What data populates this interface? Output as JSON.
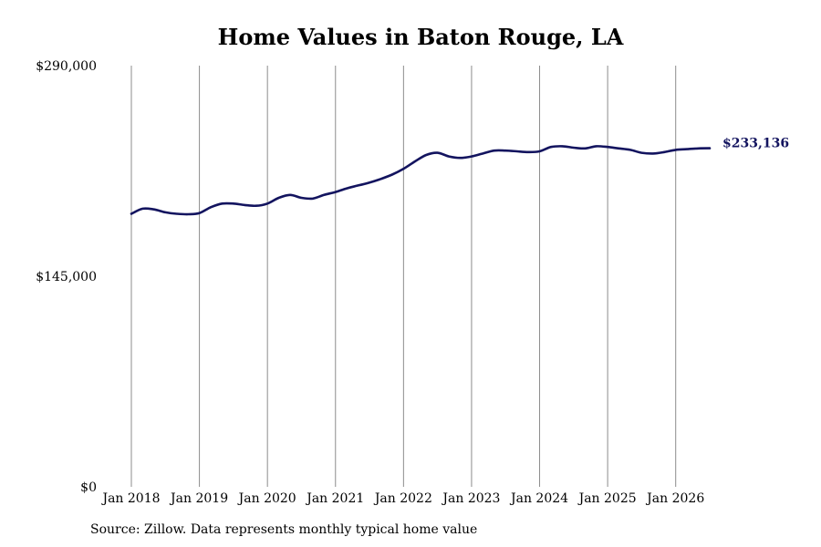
{
  "chart_data": {
    "type": "line",
    "title": "Home Values in Baton Rouge, LA",
    "xlabel": "",
    "ylabel": "",
    "ylim": [
      0,
      290000
    ],
    "y_ticks": [
      0,
      145000,
      290000
    ],
    "y_tick_labels": [
      "$0",
      "$145,000",
      "$290,000"
    ],
    "x_range": [
      "2018-01",
      "2026-07"
    ],
    "x_tick_labels": [
      "Jan 2018",
      "Jan 2019",
      "Jan 2020",
      "Jan 2021",
      "Jan 2022",
      "Jan 2023",
      "Jan 2024",
      "Jan 2025",
      "Jan 2026"
    ],
    "grid": "vertical",
    "line_color": "#13145f",
    "end_label": "$233,136",
    "series": [
      {
        "x": [
          "2018-01",
          "2018-03",
          "2018-05",
          "2018-07",
          "2018-09",
          "2018-11",
          "2019-01",
          "2019-03",
          "2019-05",
          "2019-07",
          "2019-09",
          "2019-11",
          "2020-01",
          "2020-03",
          "2020-05",
          "2020-07",
          "2020-09",
          "2020-11",
          "2021-01",
          "2021-03",
          "2021-05",
          "2021-07",
          "2021-09",
          "2021-11",
          "2022-01",
          "2022-03",
          "2022-05",
          "2022-07",
          "2022-09",
          "2022-11",
          "2023-01",
          "2023-03",
          "2023-05",
          "2023-07",
          "2023-09",
          "2023-11",
          "2024-01",
          "2024-03",
          "2024-05",
          "2024-07",
          "2024-09",
          "2024-11",
          "2025-01",
          "2025-03",
          "2025-05",
          "2025-07",
          "2025-09",
          "2025-11",
          "2026-01",
          "2026-03",
          "2026-05",
          "2026-07"
        ],
        "values": [
          188000,
          191500,
          191000,
          189000,
          188000,
          187700,
          188500,
          192500,
          195000,
          195000,
          194000,
          193500,
          195000,
          199000,
          201000,
          199000,
          198500,
          201000,
          203000,
          205500,
          207500,
          209500,
          212000,
          215000,
          219000,
          224000,
          228500,
          230000,
          227500,
          226500,
          227500,
          229500,
          231500,
          231500,
          231000,
          230500,
          231000,
          234000,
          234500,
          233500,
          233000,
          234500,
          234000,
          233000,
          232000,
          230000,
          229500,
          230500,
          232000,
          232500,
          233000,
          233136
        ]
      }
    ]
  },
  "source_note": "Source: Zillow. Data represents monthly typical home value"
}
